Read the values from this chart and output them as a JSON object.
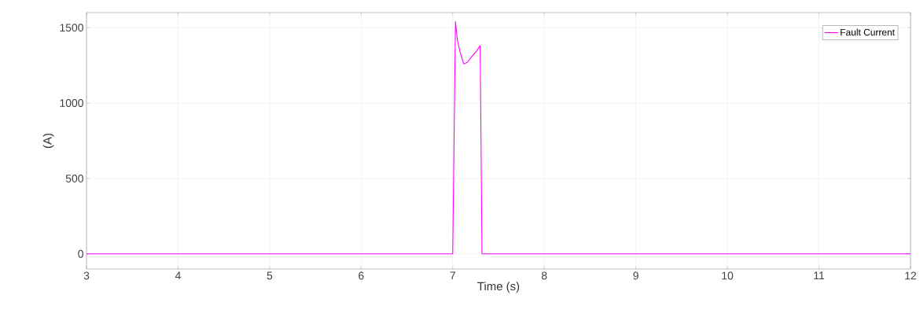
{
  "chart_data": {
    "type": "line",
    "xlabel": "Time (s)",
    "ylabel": "(A)",
    "xlim": [
      3,
      12
    ],
    "ylim": [
      -100,
      1600
    ],
    "xticks": [
      3,
      4,
      5,
      6,
      7,
      8,
      9,
      10,
      11,
      12
    ],
    "yticks": [
      0,
      500,
      1000,
      1500
    ],
    "grid": true,
    "legend": "top right",
    "series": [
      {
        "name": "Fault Current",
        "color": "#ff00ff",
        "x": [
          3,
          7.0,
          7.03,
          7.05,
          7.08,
          7.12,
          7.16,
          7.21,
          7.26,
          7.3,
          7.32,
          12
        ],
        "values": [
          0,
          0,
          1540,
          1420,
          1340,
          1260,
          1270,
          1310,
          1345,
          1380,
          0,
          0
        ]
      }
    ]
  }
}
